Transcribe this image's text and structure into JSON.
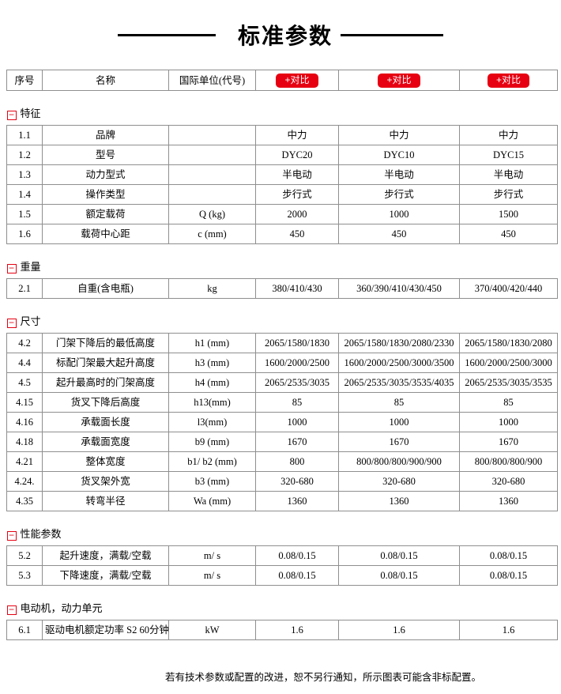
{
  "title": {
    "text": "标准参数"
  },
  "table_header": {
    "cols": [
      "序号",
      "名称",
      "国际单位(代号)"
    ],
    "compare_label": "+对比"
  },
  "sections": [
    {
      "name": "特征",
      "rows": [
        {
          "no": "1.1",
          "name": "品牌",
          "unit": "",
          "values": [
            "中力",
            "中力",
            "中力"
          ]
        },
        {
          "no": "1.2",
          "name": "型号",
          "unit": "",
          "values": [
            "DYC20",
            "DYC10",
            "DYC15"
          ]
        },
        {
          "no": "1.3",
          "name": "动力型式",
          "unit": "",
          "values": [
            "半电动",
            "半电动",
            "半电动"
          ]
        },
        {
          "no": "1.4",
          "name": "操作类型",
          "unit": "",
          "values": [
            "步行式",
            "步行式",
            "步行式"
          ]
        },
        {
          "no": "1.5",
          "name": "额定载荷",
          "unit": "Q (kg)",
          "values": [
            "2000",
            "1000",
            "1500"
          ]
        },
        {
          "no": "1.6",
          "name": "载荷中心距",
          "unit": "c (mm)",
          "values": [
            "450",
            "450",
            "450"
          ]
        }
      ]
    },
    {
      "name": "重量",
      "rows": [
        {
          "no": "2.1",
          "name": "自重(含电瓶)",
          "unit": "kg",
          "values": [
            "380/410/430",
            "360/390/410/430/450",
            "370/400/420/440"
          ]
        }
      ]
    },
    {
      "name": "尺寸",
      "rows": [
        {
          "no": "4.2",
          "name": "门架下降后的最低高度",
          "unit": "h1 (mm)",
          "values": [
            "2065/1580/1830",
            "2065/1580/1830/2080/2330",
            "2065/1580/1830/2080"
          ]
        },
        {
          "no": "4.4",
          "name": "标配门架最大起升高度",
          "unit": "h3 (mm)",
          "values": [
            "1600/2000/2500",
            "1600/2000/2500/3000/3500",
            "1600/2000/2500/3000"
          ]
        },
        {
          "no": "4.5",
          "name": "起升最高时的门架高度",
          "unit": "h4 (mm)",
          "values": [
            "2065/2535/3035",
            "2065/2535/3035/3535/4035",
            "2065/2535/3035/3535"
          ]
        },
        {
          "no": "4.15",
          "name": "货叉下降后高度",
          "unit": "h13(mm)",
          "values": [
            "85",
            "85",
            "85"
          ]
        },
        {
          "no": "4.16",
          "name": "承载面长度",
          "unit": "l3(mm)",
          "values": [
            "1000",
            "1000",
            "1000"
          ]
        },
        {
          "no": "4.18",
          "name": "承载面宽度",
          "unit": "b9 (mm)",
          "values": [
            "1670",
            "1670",
            "1670"
          ]
        },
        {
          "no": "4.21",
          "name": "整体宽度",
          "unit": "b1/ b2 (mm)",
          "values": [
            "800",
            "800/800/800/900/900",
            "800/800/800/900"
          ]
        },
        {
          "no": "4.24.",
          "name": "货叉架外宽",
          "unit": "b3 (mm)",
          "values": [
            "320-680",
            "320-680",
            "320-680"
          ]
        },
        {
          "no": "4.35",
          "name": "转弯半径",
          "unit": "Wa (mm)",
          "values": [
            "1360",
            "1360",
            "1360"
          ]
        }
      ]
    },
    {
      "name": "性能参数",
      "rows": [
        {
          "no": "5.2",
          "name": "起升速度，满载/空载",
          "unit": "m/ s",
          "values": [
            "0.08/0.15",
            "0.08/0.15",
            "0.08/0.15"
          ]
        },
        {
          "no": "5.3",
          "name": "下降速度，满载/空载",
          "unit": "m/ s",
          "values": [
            "0.08/0.15",
            "0.08/0.15",
            "0.08/0.15"
          ]
        }
      ]
    },
    {
      "name": "电动机，动力单元",
      "rows": [
        {
          "no": "6.1",
          "name": "驱动电机额定功率 S2 60分钟",
          "unit": "kW",
          "values": [
            "1.6",
            "1.6",
            "1.6"
          ]
        }
      ]
    }
  ],
  "footer": {
    "note": "若有技术参数或配置的改进，恕不另行通知，所示图表可能含非标配置。"
  },
  "colors": {
    "accent_red": "#e60012",
    "border_gray": "#8f8f8f",
    "text": "#000000"
  }
}
